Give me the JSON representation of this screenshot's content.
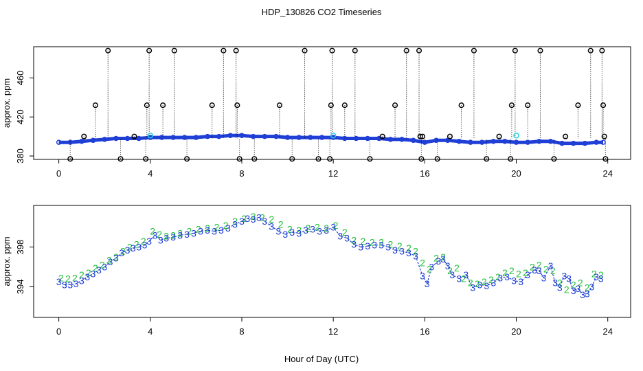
{
  "figure": {
    "title": "HDP_130826  CO2 Timeseries",
    "xlabel": "Hour of Day (UTC)"
  },
  "chart_data": [
    {
      "type": "scatter",
      "panel": "top",
      "ylabel": "approx. ppm",
      "xlim": [
        -1.1,
        25.0
      ],
      "ylim": [
        376.5,
        492.0
      ],
      "xticks": [
        0,
        4,
        8,
        12,
        16,
        20,
        24
      ],
      "yticks": [
        380,
        420,
        460
      ],
      "ytick_labels": [
        "380",
        "420",
        "460"
      ],
      "colors": {
        "main": "#1f3fd6",
        "cyan": "#22d0e0",
        "outlier": "#000000"
      },
      "series": [
        {
          "style": "blue circles",
          "x": [
            0.0,
            0.5,
            1.0,
            1.5,
            2.0,
            2.5,
            3.0,
            3.5,
            4.0,
            4.5,
            5.0,
            5.5,
            6.0,
            6.5,
            7.0,
            7.5,
            8.0,
            8.5,
            9.0,
            9.5,
            10.0,
            10.5,
            11.0,
            11.5,
            12.0,
            12.5,
            13.0,
            13.5,
            14.0,
            14.5,
            15.0,
            15.5,
            16.0,
            16.5,
            17.0,
            17.5,
            18.0,
            18.5,
            19.0,
            19.5,
            20.0,
            20.5,
            21.0,
            21.5,
            22.0,
            22.5,
            23.0,
            23.5,
            23.8
          ],
          "y": [
            394,
            394,
            395,
            396,
            397,
            398,
            398,
            398,
            399,
            399,
            399,
            399,
            399,
            400,
            400,
            401,
            401,
            400,
            400,
            400,
            399,
            399,
            399,
            399,
            399,
            398,
            398,
            398,
            398,
            397,
            397,
            396,
            394,
            396,
            396,
            395,
            394,
            394,
            395,
            395,
            394,
            394,
            395,
            395,
            393,
            393,
            393,
            394,
            394
          ]
        },
        {
          "style": "cyan circles",
          "x": [
            4.0,
            12.0,
            20.0
          ],
          "y": [
            401,
            401,
            401
          ]
        },
        {
          "style": "black outlier circles with dotted drop lines",
          "x": [
            0.5,
            1.1,
            1.6,
            2.15,
            2.7,
            3.3,
            3.8,
            3.85,
            3.95,
            4.55,
            5.05,
            5.6,
            6.7,
            7.2,
            7.75,
            7.8,
            7.9,
            8.55,
            9.65,
            10.2,
            10.75,
            11.35,
            11.85,
            11.9,
            11.95,
            12.5,
            12.95,
            13.6,
            14.15,
            14.7,
            15.2,
            15.75,
            15.8,
            15.85,
            15.9,
            16.55,
            17.1,
            17.6,
            18.15,
            18.7,
            19.25,
            19.75,
            19.8,
            19.95,
            20.5,
            21.05,
            21.65,
            22.15,
            22.7,
            23.25,
            23.75,
            23.8,
            23.85,
            23.9
          ],
          "y": [
            377,
            400,
            432,
            488,
            377,
            400,
            377,
            432,
            488,
            432,
            488,
            377,
            432,
            488,
            488,
            432,
            377,
            377,
            432,
            377,
            488,
            377,
            377,
            432,
            488,
            432,
            488,
            377,
            400,
            432,
            488,
            488,
            400,
            377,
            400,
            377,
            400,
            432,
            488,
            377,
            400,
            377,
            432,
            488,
            432,
            488,
            377,
            400,
            432,
            488,
            488,
            432,
            400,
            377
          ]
        }
      ]
    },
    {
      "type": "scatter",
      "panel": "bottom",
      "ylabel": "approx. ppm",
      "xlim": [
        -1.1,
        25.0
      ],
      "ylim": [
        390.9,
        402.2
      ],
      "xticks": [
        0,
        4,
        8,
        12,
        16,
        20,
        24
      ],
      "yticks": [
        394,
        398
      ],
      "ytick_labels": [
        "394",
        "398"
      ],
      "colors": {
        "series3": "#1f3fd6",
        "series2": "#22c03a"
      },
      "series": [
        {
          "marker_label": "3",
          "x": [
            0.0,
            0.25,
            0.5,
            0.75,
            1.0,
            1.25,
            1.5,
            1.75,
            2.0,
            2.25,
            2.5,
            2.75,
            3.0,
            3.25,
            3.5,
            3.75,
            3.95,
            4.2,
            4.45,
            4.7,
            5.0,
            5.3,
            5.6,
            5.9,
            6.2,
            6.5,
            6.8,
            7.1,
            7.4,
            7.7,
            8.0,
            8.25,
            8.5,
            8.75,
            9.0,
            9.3,
            9.6,
            9.9,
            10.2,
            10.5,
            10.8,
            11.1,
            11.4,
            11.7,
            12.0,
            12.3,
            12.6,
            12.9,
            13.2,
            13.5,
            13.8,
            14.1,
            14.4,
            14.7,
            15.0,
            15.3,
            15.6,
            15.9,
            16.1,
            16.3,
            16.6,
            16.8,
            17.0,
            17.2,
            17.5,
            17.8,
            18.1,
            18.4,
            18.7,
            19.0,
            19.3,
            19.6,
            19.9,
            20.2,
            20.5,
            20.8,
            21.0,
            21.2,
            21.5,
            21.7,
            21.9,
            22.1,
            22.3,
            22.5,
            22.7,
            22.9,
            23.1,
            23.3,
            23.5,
            23.7
          ],
          "y": [
            394.5,
            394.2,
            394.2,
            394.3,
            394.6,
            395.0,
            395.3,
            395.7,
            396.0,
            396.5,
            396.9,
            397.4,
            397.7,
            397.9,
            398.0,
            398.2,
            398.6,
            399.2,
            398.7,
            398.9,
            399.0,
            399.2,
            399.3,
            399.4,
            399.6,
            399.7,
            399.6,
            399.7,
            399.9,
            400.3,
            400.6,
            400.9,
            400.8,
            401.0,
            400.6,
            400.1,
            399.6,
            399.3,
            399.5,
            399.4,
            399.7,
            399.8,
            399.6,
            399.7,
            400.0,
            399.1,
            398.9,
            398.3,
            398.0,
            398.1,
            398.2,
            398.2,
            398.0,
            397.7,
            397.6,
            397.4,
            397.1,
            395.1,
            394.3,
            396.0,
            396.6,
            396.8,
            396.1,
            395.2,
            394.8,
            395.2,
            393.9,
            394.2,
            394.1,
            394.4,
            394.9,
            395.0,
            394.6,
            394.5,
            395.2,
            395.7,
            395.6,
            394.9,
            396.1,
            394.4,
            393.9,
            395.1,
            394.8,
            393.6,
            393.8,
            393.2,
            393.3,
            394.0,
            395.0,
            394.8
          ]
        },
        {
          "marker_label": "2",
          "x": [
            0.1,
            0.4,
            0.7,
            1.0,
            1.3,
            1.6,
            1.9,
            2.2,
            2.5,
            2.8,
            3.1,
            3.4,
            3.7,
            4.1,
            4.4,
            4.7,
            5.0,
            5.3,
            5.7,
            6.1,
            6.5,
            6.9,
            7.3,
            7.7,
            8.1,
            8.5,
            8.9,
            9.3,
            9.7,
            10.1,
            10.5,
            10.9,
            11.3,
            11.7,
            12.1,
            12.5,
            12.9,
            13.3,
            13.7,
            14.1,
            14.5,
            14.9,
            15.3,
            15.6,
            15.9,
            16.2,
            16.5,
            16.8,
            17.1,
            17.4,
            17.7,
            18.0,
            18.3,
            18.6,
            18.9,
            19.2,
            19.5,
            19.8,
            20.1,
            20.4,
            20.7,
            21.0,
            21.3,
            21.6,
            21.9,
            22.2,
            22.5,
            22.8,
            23.1,
            23.4,
            23.7
          ],
          "y": [
            394.9,
            394.8,
            394.9,
            395.2,
            395.4,
            395.9,
            396.2,
            396.7,
            397.0,
            397.6,
            398.0,
            398.3,
            398.6,
            399.6,
            399.3,
            399.1,
            399.2,
            399.4,
            399.6,
            399.8,
            399.9,
            400.0,
            400.2,
            400.6,
            400.9,
            401.1,
            401.0,
            400.8,
            400.3,
            399.8,
            399.7,
            399.9,
            400.0,
            399.9,
            400.2,
            399.5,
            398.7,
            398.6,
            398.5,
            398.5,
            398.3,
            398.1,
            397.9,
            397.6,
            396.4,
            395.8,
            396.9,
            397.0,
            395.6,
            395.9,
            394.8,
            394.4,
            394.3,
            394.5,
            394.7,
            395.0,
            395.4,
            395.6,
            395.3,
            395.4,
            396.0,
            396.2,
            395.8,
            395.6,
            394.4,
            393.7,
            394.2,
            394.4,
            393.9,
            395.3,
            395.2
          ]
        }
      ]
    }
  ]
}
